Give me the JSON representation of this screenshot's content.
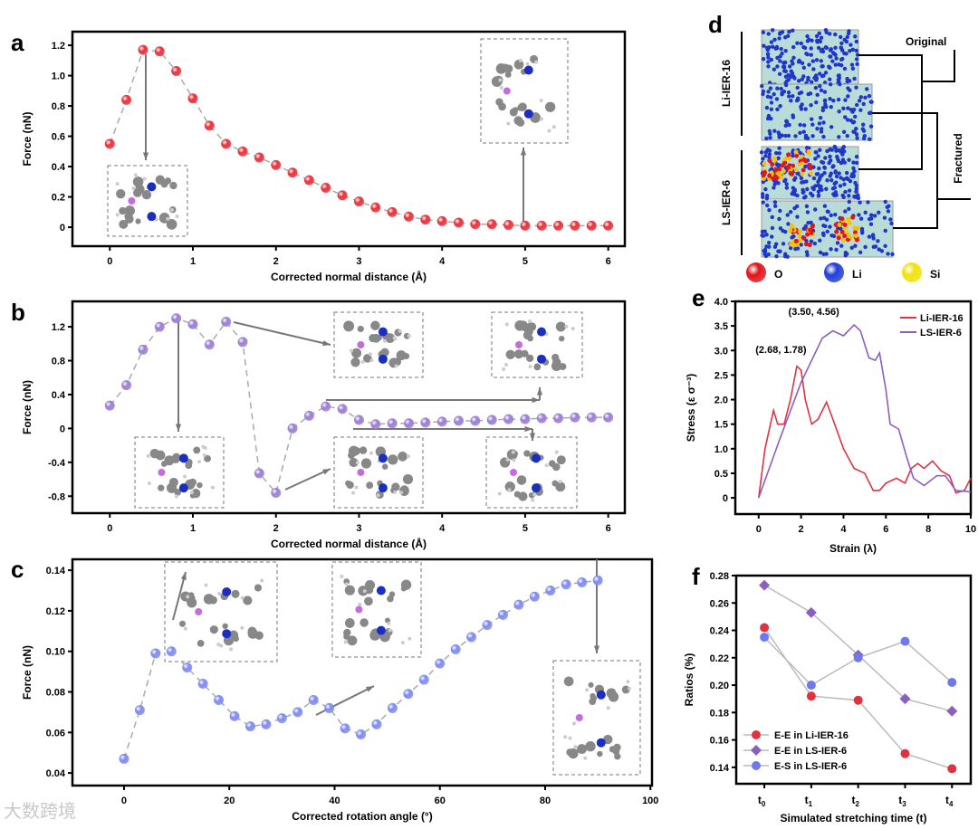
{
  "panel_labels": [
    "a",
    "b",
    "c",
    "d",
    "e",
    "f"
  ],
  "watermark": "大数跨境",
  "panel_d": {
    "group_labels": [
      "Li-IER-16",
      "LS-IER-6"
    ],
    "branch_labels": [
      "Original",
      "Fractured"
    ],
    "legend": [
      {
        "label": "O",
        "color": "#e0161b"
      },
      {
        "label": "Li",
        "color": "#2340d8"
      },
      {
        "label": "Si",
        "color": "#f2e20d"
      }
    ]
  },
  "chart_data": [
    {
      "id": "a",
      "type": "scatter",
      "xlabel": "Corrected normal distance (Å)",
      "ylabel": "Force (nN)",
      "xlim": [
        -0.45,
        6.2
      ],
      "ylim": [
        -0.125,
        1.29
      ],
      "xticks": [
        0,
        1,
        2,
        3,
        4,
        5,
        6
      ],
      "yticks": [
        0,
        0.2,
        0.4,
        0.6,
        0.8,
        1.0,
        1.2
      ],
      "ytick_labels": [
        "0",
        "0.2",
        "0.4",
        "0.6",
        "0.8",
        "1.0",
        "1.2"
      ],
      "color": "#e8333c",
      "x": [
        0,
        0.2,
        0.4,
        0.6,
        0.8,
        1.0,
        1.2,
        1.4,
        1.6,
        1.8,
        2.0,
        2.2,
        2.4,
        2.6,
        2.8,
        3.0,
        3.2,
        3.4,
        3.6,
        3.8,
        4.0,
        4.2,
        4.4,
        4.6,
        4.8,
        5.0,
        5.2,
        5.4,
        5.6,
        5.8,
        6.0
      ],
      "y": [
        0.55,
        0.84,
        1.17,
        1.16,
        1.03,
        0.85,
        0.67,
        0.55,
        0.5,
        0.46,
        0.41,
        0.36,
        0.31,
        0.26,
        0.21,
        0.17,
        0.13,
        0.1,
        0.07,
        0.05,
        0.04,
        0.03,
        0.02,
        0.02,
        0.015,
        0.01,
        0.01,
        0.01,
        0.01,
        0.01,
        0.01
      ]
    },
    {
      "id": "b",
      "type": "scatter",
      "xlabel": "Corrected normal distance (Å)",
      "ylabel": "Force (nN)",
      "xlim": [
        -0.45,
        6.2
      ],
      "ylim": [
        -1.0,
        1.5
      ],
      "xticks": [
        0,
        1,
        2,
        3,
        4,
        5,
        6
      ],
      "yticks": [
        -0.8,
        -0.4,
        0,
        0.4,
        0.8,
        1.2
      ],
      "ytick_labels": [
        "-0.8",
        "-0.4",
        "0",
        "0.4",
        "0.8",
        "1.2"
      ],
      "color": "#9b7fd4",
      "x": [
        0,
        0.2,
        0.4,
        0.6,
        0.8,
        1.0,
        1.2,
        1.4,
        1.6,
        1.8,
        2.0,
        2.2,
        2.4,
        2.6,
        2.8,
        3.0,
        3.2,
        3.4,
        3.6,
        3.8,
        4.0,
        4.2,
        4.4,
        4.6,
        4.8,
        5.0,
        5.2,
        5.4,
        5.6,
        5.8,
        6.0
      ],
      "y": [
        0.27,
        0.51,
        0.93,
        1.2,
        1.3,
        1.23,
        0.99,
        1.26,
        1.02,
        -0.53,
        -0.76,
        0.0,
        0.15,
        0.26,
        0.23,
        0.1,
        0.05,
        0.06,
        0.06,
        0.07,
        0.08,
        0.09,
        0.09,
        0.1,
        0.11,
        0.11,
        0.12,
        0.12,
        0.13,
        0.13,
        0.13
      ]
    },
    {
      "id": "c",
      "type": "scatter",
      "xlabel": "Corrected rotation angle (°)",
      "ylabel": "Force (nN)",
      "xlim": [
        -9.8,
        100.3
      ],
      "ylim": [
        0.0338,
        0.1454
      ],
      "xticks": [
        0,
        20,
        40,
        60,
        80,
        100
      ],
      "yticks": [
        0.04,
        0.06,
        0.08,
        0.1,
        0.12,
        0.14
      ],
      "ytick_labels": [
        "0.04",
        "0.06",
        "0.08",
        "0.10",
        "0.12",
        "0.14"
      ],
      "color": "#7f8cf0",
      "x": [
        0,
        3,
        6,
        9,
        12,
        15,
        18,
        21,
        24,
        27,
        30,
        33,
        36,
        39,
        42,
        45,
        48,
        51,
        54,
        57,
        60,
        63,
        66,
        69,
        72,
        75,
        78,
        81,
        84,
        87,
        90
      ],
      "y": [
        0.047,
        0.071,
        0.099,
        0.1,
        0.092,
        0.084,
        0.076,
        0.068,
        0.063,
        0.064,
        0.067,
        0.07,
        0.076,
        0.072,
        0.062,
        0.059,
        0.064,
        0.072,
        0.079,
        0.086,
        0.094,
        0.101,
        0.107,
        0.113,
        0.118,
        0.123,
        0.127,
        0.13,
        0.133,
        0.134,
        0.135
      ]
    },
    {
      "id": "e",
      "type": "line",
      "xlabel": "Strain (λ)",
      "ylabel": "Stress (ε σ⁻³)",
      "xlim": [
        -1.1,
        10
      ],
      "ylim": [
        -0.33,
        4.0
      ],
      "xticks": [
        0,
        2,
        4,
        6,
        8,
        10
      ],
      "yticks": [
        0,
        0.5,
        1.0,
        1.5,
        2.0,
        2.5,
        3.0,
        3.5,
        4.0
      ],
      "ytick_labels": [
        "0",
        "0.5",
        "1.0",
        "1.5",
        "2.0",
        "2.5",
        "3.0",
        "3.5",
        "4.0"
      ],
      "legend_position": "top-right",
      "annotations": [
        "(3.50, 4.56)",
        "(2.68, 1.78)"
      ],
      "series": [
        {
          "name": "Li-IER-16",
          "color": "#e2313f",
          "x": [
            0,
            0.3,
            0.7,
            0.9,
            1.2,
            1.5,
            1.8,
            2.0,
            2.2,
            2.5,
            2.8,
            3.2,
            3.5,
            4.0,
            4.5,
            5.0,
            5.4,
            5.7,
            6.0,
            6.5,
            6.9,
            7.2,
            7.5,
            7.8,
            8.2,
            8.6,
            9.0,
            9.3,
            9.7,
            10
          ],
          "y": [
            0,
            1.0,
            1.78,
            1.5,
            1.5,
            2.0,
            2.68,
            2.6,
            2.0,
            1.5,
            1.6,
            1.95,
            1.6,
            1.0,
            0.6,
            0.5,
            0.15,
            0.15,
            0.3,
            0.4,
            0.3,
            0.6,
            0.7,
            0.6,
            0.75,
            0.55,
            0.45,
            0.1,
            0.15,
            0.4
          ]
        },
        {
          "name": "LS-IER-6",
          "color": "#8a5fc0",
          "x": [
            0,
            1,
            2,
            3,
            3.5,
            4,
            4.5,
            4.8,
            5.2,
            5.5,
            5.7,
            6.0,
            6.2,
            6.6,
            7.0,
            7.3,
            7.8,
            8.4,
            8.8,
            9.3,
            10
          ],
          "y": [
            0,
            1.2,
            2.35,
            3.25,
            3.4,
            3.3,
            3.52,
            3.4,
            2.85,
            2.8,
            2.95,
            2.2,
            1.5,
            1.4,
            0.8,
            0.4,
            0.25,
            0.45,
            0.45,
            0.15,
            0.12
          ]
        }
      ]
    },
    {
      "id": "f",
      "type": "line",
      "xlabel": "Simulated stretching time (t)",
      "ylabel": "Ratios (%)",
      "categories": [
        "t0",
        "t1",
        "t2",
        "t3",
        "t4"
      ],
      "ylim": [
        0.128,
        0.28
      ],
      "yticks": [
        0.14,
        0.16,
        0.18,
        0.2,
        0.22,
        0.24,
        0.26,
        0.28
      ],
      "ytick_labels": [
        "0.14",
        "0.16",
        "0.18",
        "0.20",
        "0.22",
        "0.24",
        "0.26",
        "0.28"
      ],
      "legend_position": "bottom-left",
      "series": [
        {
          "name": "E-E in Li-IER-16",
          "marker": "circle",
          "color": "#e2313f",
          "values": [
            0.242,
            0.192,
            0.189,
            0.15,
            0.139
          ]
        },
        {
          "name": "E-E in LS-IER-6",
          "marker": "diamond",
          "color": "#8a5fc0",
          "values": [
            0.273,
            0.253,
            0.222,
            0.19,
            0.181
          ]
        },
        {
          "name": "E-S in LS-IER-6",
          "marker": "circle",
          "color": "#6e78f0",
          "values": [
            0.235,
            0.2,
            0.22,
            0.232,
            0.202
          ]
        }
      ]
    }
  ]
}
